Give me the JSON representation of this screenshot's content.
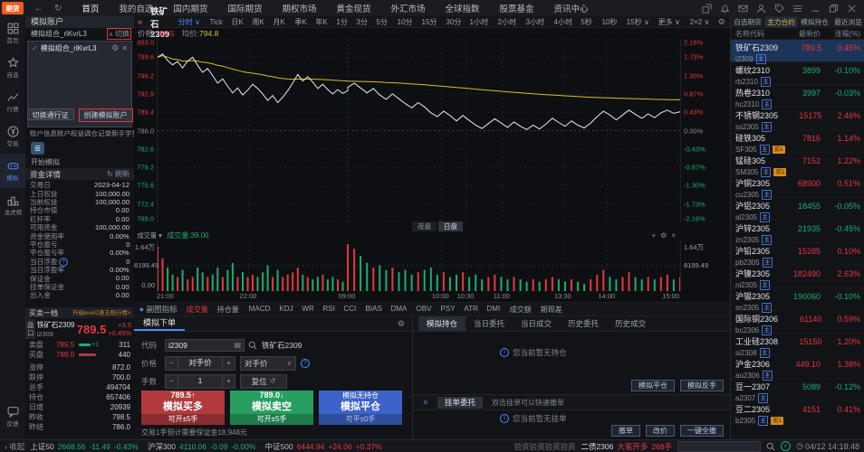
{
  "topbar": {
    "logo": "期货",
    "menu": [
      "首页",
      "我的自选",
      "国内期货",
      "国际期货",
      "期权市场",
      "黄金现货",
      "外汇市场",
      "全球指数",
      "股票基金",
      "资讯中心"
    ]
  },
  "rail": {
    "items": [
      {
        "label": "首页"
      },
      {
        "label": "自选"
      },
      {
        "label": "行情"
      },
      {
        "label": "交易"
      },
      {
        "label": "模拟"
      },
      {
        "label": "龙虎榜"
      }
    ],
    "feedback": "反馈"
  },
  "account": {
    "header": "模拟账户",
    "name": "模拟组合_rlKvrL3",
    "collapse_caret": "∧",
    "collapse": "切换",
    "dropdown_item": "模拟组合_rlKvrL3",
    "btn_switch": "切换通行证",
    "btn_create": "创建模拟账户",
    "tabs": [
      "账户信息",
      "账户权益",
      "调仓记录",
      "新手学堂"
    ],
    "start": "开始模拟"
  },
  "funds": {
    "title": "资金详情",
    "refresh": "刷新",
    "rows": [
      {
        "label": "交易日",
        "value": "2023-04-12"
      },
      {
        "label": "上日权益",
        "value": "100,000.00"
      },
      {
        "label": "当前权益",
        "value": "100,000.00"
      },
      {
        "label": "持仓市值",
        "value": "0.00"
      },
      {
        "label": "杠杆率",
        "value": "0.00"
      },
      {
        "label": "可用资金",
        "value": "100,000.00"
      },
      {
        "label": "资金使用率",
        "value": "0.00%"
      },
      {
        "label": "平仓盈亏",
        "value": "0"
      },
      {
        "label": "平仓盈亏率",
        "value": "0.00%"
      },
      {
        "label": "当日浮盈",
        "value": "0",
        "info": true
      },
      {
        "label": "当日浮盈率",
        "value": "0.00%"
      },
      {
        "label": "保证金",
        "value": "0.00"
      },
      {
        "label": "挂单保证金",
        "value": "0.00"
      },
      {
        "label": "出入金",
        "value": "0.00"
      }
    ]
  },
  "level_bar": {
    "left": "买卖一档",
    "right": "升级level2查五档行情>"
  },
  "orderbook": {
    "tag": "盘口",
    "name": "铁矿石2309",
    "code": "i2309",
    "price": "789.5",
    "chg": "+3.5",
    "pct": "+0.45%",
    "ask_label": "卖盘",
    "ask_price": "789.5",
    "ask_delta": "+1",
    "ask_vol": "311",
    "bid_label": "买盘",
    "bid_price": "789.0",
    "bid_vol": "440",
    "info": [
      {
        "label": "涨停",
        "value": "872.0",
        "cls": "red"
      },
      {
        "label": "跌停",
        "value": "700.0",
        "cls": "green"
      },
      {
        "label": "总手",
        "value": "494704",
        "cls": ""
      },
      {
        "label": "持仓",
        "value": "657406",
        "cls": ""
      },
      {
        "label": "日增",
        "value": "20939",
        "cls": ""
      },
      {
        "label": "昨收",
        "value": "798.5",
        "cls": ""
      },
      {
        "label": "昨结",
        "value": "786.0",
        "cls": ""
      }
    ]
  },
  "chart": {
    "back_icon": "«",
    "symbol": "铁矿石2309",
    "timeframes": [
      "分时",
      "Tick",
      "日K",
      "周K",
      "月K",
      "季K",
      "年K",
      "1分",
      "3分",
      "5分",
      "10分",
      "15分",
      "30分",
      "1小时",
      "2小时",
      "3小时",
      "4小时",
      "5秒",
      "10秒",
      "15秒",
      "更多",
      "2×2"
    ],
    "caret_tabs": [
      "分时",
      "15秒",
      "更多",
      "2×2"
    ],
    "active_timeframe": "分时",
    "price_label": "价格:",
    "price_value": "789.5",
    "avg_label": "均价:",
    "avg_value": "794.8",
    "session_tabs": [
      "夜盘",
      "日盘"
    ],
    "active_session": "日盘"
  },
  "chart_data": {
    "type": "line",
    "title": "铁矿石2309 分时走势",
    "prev_close": 786.0,
    "last_price": 789.5,
    "avg_price": 794.8,
    "y_axis_price": [
      "803.0",
      "799.6",
      "796.2",
      "792.8",
      "789.4",
      "786.0",
      "782.6",
      "779.2",
      "775.8",
      "772.4",
      "769.0"
    ],
    "y_axis_pct": [
      "2.16%",
      "1.73%",
      "1.30%",
      "0.87%",
      "0.43%",
      "0.00%",
      "-0.43%",
      "-0.87%",
      "-1.30%",
      "-1.73%",
      "-2.16%"
    ],
    "ylim": [
      769.0,
      803.0
    ],
    "x_ticks": [
      {
        "label": "21:00",
        "pos": 0.0
      },
      {
        "label": "22:00",
        "pos": 0.175
      },
      {
        "label": "09:00",
        "pos": 0.364
      },
      {
        "label": "10:00",
        "pos": 0.543
      },
      {
        "label": "10:30",
        "pos": 0.591
      },
      {
        "label": "11:00",
        "pos": 0.66
      },
      {
        "label": "13:30",
        "pos": 0.777
      },
      {
        "label": "14:00",
        "pos": 0.861
      },
      {
        "label": "15:00",
        "pos": 1.0
      }
    ],
    "night_day_split": 0.364,
    "price_series": [
      799.6,
      800.2,
      799.0,
      798.2,
      798.8,
      797.6,
      798.9,
      799.6,
      798.1,
      796.8,
      797.5,
      796.2,
      794.8,
      795.6,
      794.2,
      793.0,
      793.9,
      792.6,
      793.5,
      794.6,
      793.8,
      792.8,
      791.6,
      792.5,
      791.2,
      792.2,
      793.4,
      794.8,
      796.4,
      795.2,
      796.0,
      795.0,
      793.8,
      794.6,
      793.6,
      792.8,
      793.6,
      792.9,
      793.4,
      794.0,
      794.8,
      793.9,
      793.0,
      793.8,
      792.6,
      791.8,
      792.8,
      791.9,
      791.0,
      790.2,
      791.2,
      790.4,
      789.3,
      788.6,
      789.6,
      788.8,
      787.8,
      788.8,
      787.9,
      787.0,
      786.4,
      787.3,
      788.2,
      787.4,
      786.6,
      787.6,
      786.8,
      786.2,
      787.0,
      786.3,
      787.2,
      788.3,
      787.5,
      786.8,
      787.8,
      787.0,
      786.5,
      787.4,
      788.6,
      789.6,
      788.9,
      788.0,
      788.9,
      789.8,
      789.0,
      788.3,
      789.1,
      788.4,
      789.3,
      789.8,
      789.2,
      789.5
    ],
    "volume_series": [
      0.95,
      0.7,
      0.5,
      0.35,
      0.3,
      0.45,
      0.25,
      0.3,
      0.5,
      0.4,
      0.3,
      0.35,
      0.5,
      0.3,
      0.45,
      0.6,
      0.3,
      0.4,
      0.3,
      0.35,
      0.3,
      0.4,
      0.55,
      0.3,
      0.45,
      0.3,
      0.35,
      0.4,
      0.5,
      0.35,
      0.3,
      0.25,
      0.3,
      0.35,
      0.25,
      0.3,
      0.25,
      0.2,
      0.3,
      1.0,
      0.9,
      0.75,
      0.6,
      0.5,
      0.55,
      0.45,
      0.5,
      0.4,
      0.45,
      0.35,
      0.4,
      0.45,
      0.5,
      0.35,
      0.4,
      0.3,
      0.35,
      0.4,
      0.3,
      0.35,
      0.25,
      0.3,
      0.35,
      0.3,
      0.25,
      0.3,
      0.25,
      0.2,
      0.25,
      0.2,
      0.25,
      0.3,
      0.25,
      0.2,
      0.25,
      0.2,
      0.15,
      0.25,
      0.35,
      0.45,
      0.3,
      0.25,
      0.3,
      0.4,
      0.3,
      0.25,
      0.3,
      0.25,
      0.3,
      0.35,
      0.25,
      0.3
    ],
    "volume_axis": {
      "max_label": "1.64万",
      "mid_label": "8199.49",
      "min_label": "0.00"
    }
  },
  "volume": {
    "selector": "成交量",
    "last_label": "成交量:39.00"
  },
  "indicators": {
    "label": "副图指标",
    "items": [
      "成交量",
      "持仓量",
      "MACD",
      "KDJ",
      "WR",
      "RSI",
      "CCI",
      "BIAS",
      "DMA",
      "OBV",
      "PSY",
      "ATR",
      "DMI",
      "成交额",
      "期现差"
    ],
    "active": "成交量"
  },
  "order_panel": {
    "tab": "模拟下单",
    "code_label": "代码",
    "code_value": "i2309",
    "code_name": "铁矿石2309",
    "price_label": "价格",
    "price_value": "对手价",
    "price_select": "对手价",
    "qty_label": "手数",
    "qty_value": "1",
    "reset": "复位",
    "buy": {
      "price": "789.5↑",
      "label": "模拟买多",
      "sub": "可开±5手"
    },
    "sell": {
      "price": "789.0↓",
      "label": "模拟卖空",
      "sub": "可开±5手"
    },
    "close": {
      "top": "模拟无持仓",
      "label": "模拟平仓",
      "sub": "可平±0手"
    },
    "margin_note": "交易1手预计需要保证金18,948元"
  },
  "positions": {
    "tabs": [
      "模拟持仓",
      "当日委托",
      "当日成交",
      "历史委托",
      "历史成交"
    ],
    "active_tab": "模拟持仓",
    "empty_positions": "您当前暂无持仓",
    "btn_close": "模拟平仓",
    "btn_reverse": "模拟反手",
    "pending_tab": "挂单委托",
    "pending_hint": "双击挂单可以快速撤单",
    "empty_pending": "您当前暂无挂单",
    "btn_cancel": "撤单",
    "btn_reprice": "改价",
    "btn_cancel_all": "一键全撤"
  },
  "watchlist": {
    "tabs": [
      "自选期货",
      "主力合约",
      "模拟持仓",
      "最近浏览"
    ],
    "active_tab": "主力合约",
    "columns": [
      "名称代码",
      "最新价",
      "涨幅(%)"
    ],
    "rows": [
      {
        "name": "铁矿石2309",
        "code": "i2309",
        "badges": [
          "主"
        ],
        "price": "789.5",
        "pct": "0.45%",
        "dir": "up",
        "selected": true
      },
      {
        "name": "螺纹2310",
        "code": "rb2310",
        "badges": [
          "主"
        ],
        "price": "3899",
        "pct": "-0.10%",
        "dir": "down"
      },
      {
        "name": "热卷2310",
        "code": "hc2310",
        "badges": [
          "主"
        ],
        "price": "3997",
        "pct": "-0.03%",
        "dir": "down"
      },
      {
        "name": "不锈钢2305",
        "code": "ss2305",
        "badges": [
          "主"
        ],
        "price": "15175",
        "pct": "2.46%",
        "dir": "up"
      },
      {
        "name": "硅铁305",
        "code": "SF305",
        "badges": [
          "主",
          "买1"
        ],
        "price": "7816",
        "pct": "1.14%",
        "dir": "up"
      },
      {
        "name": "锰硅305",
        "code": "SM305",
        "badges": [
          "主",
          "买1"
        ],
        "price": "7152",
        "pct": "1.22%",
        "dir": "up"
      },
      {
        "name": "沪铜2305",
        "code": "cu2305",
        "badges": [
          "主"
        ],
        "price": "68900",
        "pct": "0.51%",
        "dir": "up"
      },
      {
        "name": "沪铝2305",
        "code": "al2305",
        "badges": [
          "主"
        ],
        "price": "18455",
        "pct": "-0.05%",
        "dir": "down"
      },
      {
        "name": "沪锌2305",
        "code": "zn2305",
        "badges": [
          "主"
        ],
        "price": "21935",
        "pct": "-0.45%",
        "dir": "down"
      },
      {
        "name": "沪铅2305",
        "code": "pb2305",
        "badges": [
          "主"
        ],
        "price": "15285",
        "pct": "0.10%",
        "dir": "up"
      },
      {
        "name": "沪镍2305",
        "code": "ni2305",
        "badges": [
          "主"
        ],
        "price": "182490",
        "pct": "2.63%",
        "dir": "up"
      },
      {
        "name": "沪锡2305",
        "code": "sn2305",
        "badges": [
          "主"
        ],
        "price": "190060",
        "pct": "-0.10%",
        "dir": "down"
      },
      {
        "name": "国际铜2306",
        "code": "bc2306",
        "badges": [
          "主"
        ],
        "price": "61140",
        "pct": "0.59%",
        "dir": "up"
      },
      {
        "name": "工业硅2308",
        "code": "si2308",
        "badges": [
          "主"
        ],
        "price": "15150",
        "pct": "1.20%",
        "dir": "up"
      },
      {
        "name": "沪金2306",
        "code": "au2306",
        "badges": [
          "主"
        ],
        "price": "449.10",
        "pct": "1.38%",
        "dir": "up"
      },
      {
        "name": "豆一2307",
        "code": "a2307",
        "badges": [
          "主"
        ],
        "price": "5089",
        "pct": "-0.12%",
        "dir": "down"
      },
      {
        "name": "豆二2305",
        "code": "b2305",
        "badges": [
          "主",
          "买1"
        ],
        "price": "4151",
        "pct": "0.41%",
        "dir": "up"
      }
    ]
  },
  "statusbar": {
    "collapse": "‹ 收起",
    "indices": [
      {
        "name": "上证50",
        "value": "2668.56",
        "chg": "-11.49",
        "pct": "-0.43%",
        "dir": "down"
      },
      {
        "name": "沪深300",
        "value": "4110.06",
        "chg": "-0.09",
        "pct": "-0.00%",
        "dir": "down"
      },
      {
        "name": "中证500",
        "value": "6444.94",
        "chg": "+24.06",
        "pct": "+0.37%",
        "dir": "up"
      }
    ],
    "ticker": "验资验资验资验资",
    "alert": {
      "name": "二债2306",
      "action": "大笔开多",
      "qty": "268手"
    },
    "search_value": "",
    "time": "04/12 14:18:48"
  },
  "colors": {
    "red": "#e5383c",
    "green": "#1aad74",
    "yellow": "#d4c122",
    "blue": "#4a8cff",
    "orange": "#ff7d1a"
  }
}
